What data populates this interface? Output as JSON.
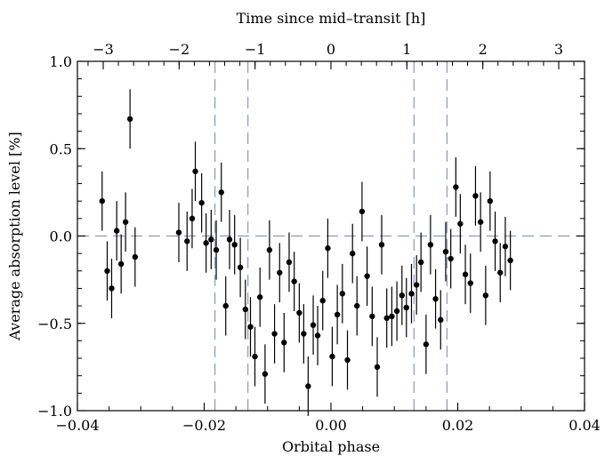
{
  "chart_data": {
    "type": "scatter",
    "title": "",
    "xlabel": "Orbital phase",
    "ylabel": "Average absorption level [%]",
    "top_xlabel": "Time since mid–transit [h]",
    "xlim": [
      -0.04,
      0.04
    ],
    "ylim": [
      -1.0,
      1.0
    ],
    "top_xlim": [
      -3.34,
      3.34
    ],
    "x_ticks": [
      "−0.04",
      "−0.02",
      "0.00",
      "0.02",
      "0.04"
    ],
    "x_tick_values": [
      -0.04,
      -0.02,
      0.0,
      0.02,
      0.04
    ],
    "y_ticks": [
      "1.0",
      "0.5",
      "0.0",
      "−0.5",
      "−1.0"
    ],
    "y_tick_values": [
      1.0,
      0.5,
      0.0,
      -0.5,
      -1.0
    ],
    "top_ticks": [
      "−3",
      "−2",
      "−1",
      "0",
      "1",
      "2",
      "3"
    ],
    "top_tick_values": [
      -3,
      -2,
      -1,
      0,
      1,
      2,
      3
    ],
    "reference_lines": {
      "horizontal": [
        0.0
      ],
      "vertical": [
        -0.0183,
        -0.0131,
        0.0131,
        0.0183
      ]
    },
    "colors": {
      "points": "#000000",
      "reference_lines": "#8a9bb5",
      "axes": "#000000"
    },
    "series": [
      {
        "points": [
          {
            "x": -0.0361,
            "y": 0.2,
            "err": 0.17
          },
          {
            "x": -0.0353,
            "y": -0.2,
            "err": 0.17
          },
          {
            "x": -0.0346,
            "y": -0.3,
            "err": 0.17
          },
          {
            "x": -0.0338,
            "y": 0.03,
            "err": 0.17
          },
          {
            "x": -0.0331,
            "y": -0.16,
            "err": 0.17
          },
          {
            "x": -0.0324,
            "y": 0.08,
            "err": 0.17
          },
          {
            "x": -0.0317,
            "y": 0.67,
            "err": 0.17
          },
          {
            "x": -0.0309,
            "y": -0.12,
            "err": 0.17
          },
          {
            "x": -0.024,
            "y": 0.02,
            "err": 0.17
          },
          {
            "x": -0.0227,
            "y": -0.03,
            "err": 0.17
          },
          {
            "x": -0.0219,
            "y": 0.1,
            "err": 0.17
          },
          {
            "x": -0.0214,
            "y": 0.37,
            "err": 0.17
          },
          {
            "x": -0.0204,
            "y": 0.19,
            "err": 0.17
          },
          {
            "x": -0.0197,
            "y": -0.04,
            "err": 0.17
          },
          {
            "x": -0.0189,
            "y": -0.02,
            "err": 0.17
          },
          {
            "x": -0.0181,
            "y": -0.08,
            "err": 0.17
          },
          {
            "x": -0.0173,
            "y": 0.25,
            "err": 0.17
          },
          {
            "x": -0.0166,
            "y": -0.4,
            "err": 0.17
          },
          {
            "x": -0.016,
            "y": -0.02,
            "err": 0.17
          },
          {
            "x": -0.0152,
            "y": -0.05,
            "err": 0.17
          },
          {
            "x": -0.0143,
            "y": -0.18,
            "err": 0.17
          },
          {
            "x": -0.0135,
            "y": -0.42,
            "err": 0.17
          },
          {
            "x": -0.0127,
            "y": -0.52,
            "err": 0.17
          },
          {
            "x": -0.012,
            "y": -0.69,
            "err": 0.17
          },
          {
            "x": -0.0112,
            "y": -0.35,
            "err": 0.17
          },
          {
            "x": -0.0104,
            "y": -0.79,
            "err": 0.17
          },
          {
            "x": -0.0097,
            "y": -0.08,
            "err": 0.17
          },
          {
            "x": -0.0089,
            "y": -0.56,
            "err": 0.17
          },
          {
            "x": -0.0081,
            "y": -0.21,
            "err": 0.17
          },
          {
            "x": -0.0074,
            "y": -0.61,
            "err": 0.17
          },
          {
            "x": -0.0066,
            "y": -0.15,
            "err": 0.17
          },
          {
            "x": -0.0058,
            "y": -0.26,
            "err": 0.17
          },
          {
            "x": -0.005,
            "y": -0.44,
            "err": 0.17
          },
          {
            "x": -0.0043,
            "y": -0.56,
            "err": 0.17
          },
          {
            "x": -0.0036,
            "y": -0.86,
            "err": 0.17
          },
          {
            "x": -0.0028,
            "y": -0.51,
            "err": 0.17
          },
          {
            "x": -0.0021,
            "y": -0.57,
            "err": 0.17
          },
          {
            "x": -0.0013,
            "y": -0.37,
            "err": 0.17
          },
          {
            "x": -0.0005,
            "y": -0.07,
            "err": 0.17
          },
          {
            "x": 0.0002,
            "y": -0.69,
            "err": 0.17
          },
          {
            "x": 0.001,
            "y": -0.45,
            "err": 0.17
          },
          {
            "x": 0.0018,
            "y": -0.33,
            "err": 0.17
          },
          {
            "x": 0.0026,
            "y": -0.71,
            "err": 0.17
          },
          {
            "x": 0.0034,
            "y": -0.1,
            "err": 0.17
          },
          {
            "x": 0.0041,
            "y": -0.4,
            "err": 0.17
          },
          {
            "x": 0.0049,
            "y": 0.14,
            "err": 0.17
          },
          {
            "x": 0.0057,
            "y": -0.23,
            "err": 0.17
          },
          {
            "x": 0.0065,
            "y": -0.46,
            "err": 0.17
          },
          {
            "x": 0.0073,
            "y": -0.75,
            "err": 0.17
          },
          {
            "x": 0.008,
            "y": -0.05,
            "err": 0.17
          },
          {
            "x": 0.0088,
            "y": -0.47,
            "err": 0.17
          },
          {
            "x": 0.0096,
            "y": -0.46,
            "err": 0.17
          },
          {
            "x": 0.0104,
            "y": -0.43,
            "err": 0.17
          },
          {
            "x": 0.0112,
            "y": -0.34,
            "err": 0.17
          },
          {
            "x": 0.0119,
            "y": -0.41,
            "err": 0.17
          },
          {
            "x": 0.0127,
            "y": -0.33,
            "err": 0.17
          },
          {
            "x": 0.0135,
            "y": -0.28,
            "err": 0.17
          },
          {
            "x": 0.0142,
            "y": -0.15,
            "err": 0.17
          },
          {
            "x": 0.015,
            "y": -0.62,
            "err": 0.17
          },
          {
            "x": 0.0157,
            "y": -0.05,
            "err": 0.17
          },
          {
            "x": 0.0165,
            "y": -0.36,
            "err": 0.17
          },
          {
            "x": 0.0173,
            "y": -0.48,
            "err": 0.17
          },
          {
            "x": 0.0181,
            "y": -0.09,
            "err": 0.17
          },
          {
            "x": 0.0189,
            "y": -0.13,
            "err": 0.17
          },
          {
            "x": 0.0197,
            "y": 0.28,
            "err": 0.17
          },
          {
            "x": 0.0204,
            "y": 0.07,
            "err": 0.17
          },
          {
            "x": 0.0212,
            "y": -0.22,
            "err": 0.17
          },
          {
            "x": 0.022,
            "y": -0.27,
            "err": 0.17
          },
          {
            "x": 0.0228,
            "y": 0.23,
            "err": 0.17
          },
          {
            "x": 0.0236,
            "y": 0.08,
            "err": 0.17
          },
          {
            "x": 0.0244,
            "y": -0.34,
            "err": 0.17
          },
          {
            "x": 0.0251,
            "y": 0.2,
            "err": 0.17
          },
          {
            "x": 0.0259,
            "y": -0.03,
            "err": 0.17
          },
          {
            "x": 0.0267,
            "y": -0.21,
            "err": 0.17
          },
          {
            "x": 0.0275,
            "y": -0.06,
            "err": 0.17
          },
          {
            "x": 0.0283,
            "y": -0.14,
            "err": 0.17
          }
        ]
      }
    ]
  }
}
